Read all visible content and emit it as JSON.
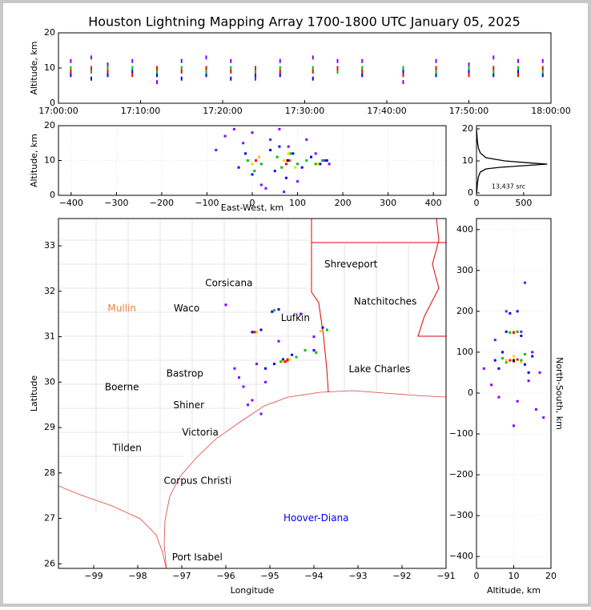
{
  "title": "Houston Lightning Mapping Array 1700-1800 UTC January 05, 2025",
  "chart_data": [
    {
      "type": "scatter",
      "ylabel": "Altitude, km",
      "xlim": [
        "17:00:00",
        "18:00:00"
      ],
      "xticks": [
        "17:00:00",
        "17:10:00",
        "17:20:00",
        "17:30:00",
        "17:40:00",
        "17:50:00",
        "18:00:00"
      ],
      "ylim": [
        0,
        20
      ],
      "yticks": [
        0,
        10,
        20
      ],
      "grid": false,
      "series": [
        {
          "color": "#8000ff",
          "x": [
            "17:01:30",
            "17:04:00",
            "17:06:00",
            "17:09:00",
            "17:12:00",
            "17:15:00",
            "17:18:00",
            "17:21:00",
            "17:24:00",
            "17:27:00",
            "17:31:00",
            "17:34:00",
            "17:37:00",
            "17:42:00",
            "17:46:00",
            "17:50:00",
            "17:53:00",
            "17:56:00",
            "17:59:00"
          ],
          "y": [
            12,
            13,
            11,
            12,
            6,
            12,
            13,
            12,
            7,
            12,
            13,
            12,
            12,
            6,
            12,
            11,
            13,
            12,
            12
          ]
        },
        {
          "color": "#0000ff",
          "x": [
            "17:01:30",
            "17:04:00",
            "17:06:00",
            "17:09:00",
            "17:12:00",
            "17:15:00",
            "17:18:00",
            "17:21:00",
            "17:24:00",
            "17:27:00",
            "17:31:00",
            "17:34:00",
            "17:37:00",
            "17:42:00",
            "17:46:00",
            "17:50:00",
            "17:53:00",
            "17:56:00",
            "17:59:00"
          ],
          "y": [
            8,
            7,
            8,
            9,
            8,
            7,
            8,
            7,
            8,
            8,
            7,
            9,
            8,
            9,
            8,
            9,
            8,
            9,
            8
          ]
        },
        {
          "color": "#00c000",
          "x": [
            "17:01:30",
            "17:04:00",
            "17:06:00",
            "17:09:00",
            "17:12:00",
            "17:15:00",
            "17:18:00",
            "17:21:00",
            "17:24:00",
            "17:27:00",
            "17:31:00",
            "17:34:00",
            "17:37:00",
            "17:42:00",
            "17:46:00",
            "17:50:00",
            "17:53:00",
            "17:56:00",
            "17:59:00"
          ],
          "y": [
            10,
            9,
            10,
            10,
            9,
            10,
            9,
            10,
            9,
            10,
            10,
            9,
            10,
            10,
            9,
            10,
            9,
            10,
            9
          ]
        },
        {
          "color": "#ff0000",
          "x": [
            "17:01:30",
            "17:04:00",
            "17:06:00",
            "17:09:00",
            "17:12:00",
            "17:15:00",
            "17:18:00",
            "17:21:00",
            "17:24:00",
            "17:27:00",
            "17:31:00",
            "17:34:00",
            "17:37:00",
            "17:42:00",
            "17:46:00",
            "17:50:00",
            "17:53:00",
            "17:56:00",
            "17:59:00"
          ],
          "y": [
            9,
            10,
            9,
            8,
            10,
            9,
            10,
            9,
            10,
            9,
            9,
            10,
            9,
            8,
            10,
            8,
            10,
            8,
            10
          ]
        }
      ]
    },
    {
      "type": "scatter",
      "xlabel": "East-West, km",
      "ylabel": "Altitude, km",
      "xlim": [
        -428,
        428
      ],
      "xticks": [
        {
          "value": -400,
          "label": "−400"
        },
        {
          "value": -300,
          "label": "−300"
        },
        {
          "value": -200,
          "label": "−200"
        },
        {
          "value": -100,
          "label": "−100"
        },
        0,
        100,
        200,
        300,
        400
      ],
      "ylim": [
        0,
        20
      ],
      "yticks": [
        0,
        10,
        20
      ],
      "grid": true,
      "series": [
        {
          "color": "#8000ff",
          "x": [
            -60,
            -40,
            -20,
            0,
            20,
            40,
            60,
            80,
            100,
            120,
            140,
            160,
            170,
            -80,
            30,
            70
          ],
          "y": [
            17,
            19,
            15,
            18,
            3,
            16,
            19,
            14,
            4,
            16,
            12,
            10,
            9,
            13,
            2,
            1
          ]
        },
        {
          "color": "#0000ff",
          "x": [
            -30,
            -15,
            0,
            15,
            40,
            50,
            60,
            75,
            90,
            110,
            130,
            150,
            165
          ],
          "y": [
            8,
            12,
            6,
            11,
            13,
            7,
            14,
            5,
            12,
            8,
            11,
            9,
            10
          ]
        },
        {
          "color": "#00c000",
          "x": [
            -10,
            5,
            20,
            55,
            65,
            85,
            100,
            120,
            140,
            155
          ],
          "y": [
            10,
            7,
            9,
            11,
            8,
            12,
            9,
            10,
            9,
            10
          ]
        },
        {
          "color": "#ffd000",
          "x": [
            0,
            15,
            70,
            80,
            95,
            145
          ],
          "y": [
            9,
            11,
            10,
            12,
            8,
            9
          ]
        },
        {
          "color": "#ff0000",
          "x": [
            8,
            75,
            82
          ],
          "y": [
            10,
            9,
            10
          ]
        },
        {
          "color": "#000000",
          "x": [
            78
          ],
          "y": [
            10
          ]
        }
      ]
    },
    {
      "type": "line",
      "annotation": "13,437 src",
      "xlim": [
        0,
        790
      ],
      "xticks": [
        0,
        500
      ],
      "ylim": [
        -0.75,
        21
      ],
      "yticks": [
        0,
        10,
        20
      ],
      "grid": false,
      "color": "#000000",
      "x": [
        0,
        5,
        10,
        20,
        40,
        100,
        300,
        600,
        750,
        500,
        250,
        100,
        40,
        20,
        10,
        5,
        2
      ],
      "y": [
        20,
        18,
        16,
        14,
        12.5,
        11,
        10,
        9.3,
        9,
        8.5,
        8,
        7.5,
        6.5,
        5,
        3,
        1,
        0
      ]
    },
    {
      "type": "map",
      "xlabel": "Longitude",
      "ylabel": "Latitude",
      "xlim": [
        -99.8,
        -91
      ],
      "xticks": [
        {
          "value": -99,
          "label": "−99"
        },
        {
          "value": -98,
          "label": "−98"
        },
        {
          "value": -97,
          "label": "−97"
        },
        {
          "value": -96,
          "label": "−96"
        },
        {
          "value": -95,
          "label": "−95"
        },
        {
          "value": -94,
          "label": "−94"
        },
        {
          "value": -93,
          "label": "−93"
        },
        {
          "value": -92,
          "label": "−92"
        },
        {
          "value": -91,
          "label": "−91"
        }
      ],
      "ylim": [
        25.9,
        33.6
      ],
      "yticks": [
        26,
        27,
        28,
        29,
        30,
        31,
        32,
        33
      ],
      "grid": false,
      "places": [
        {
          "label": "Shreveport",
          "lon": -93.16,
          "lat": 32.59,
          "color": "#000000"
        },
        {
          "label": "Corsicana",
          "lon": -95.93,
          "lat": 32.17,
          "color": "#000000"
        },
        {
          "label": "Natchitoches",
          "lon": -92.38,
          "lat": 31.77,
          "color": "#000000"
        },
        {
          "label": "Mullin",
          "lon": -98.36,
          "lat": 31.62,
          "color": "#f08040"
        },
        {
          "label": "Waco",
          "lon": -96.89,
          "lat": 31.62,
          "color": "#000000"
        },
        {
          "label": "Lufkin",
          "lon": -94.42,
          "lat": 31.41,
          "color": "#000000"
        },
        {
          "label": "Bastrop",
          "lon": -96.93,
          "lat": 30.18,
          "color": "#000000"
        },
        {
          "label": "Lake Charles",
          "lon": -92.51,
          "lat": 30.28,
          "color": "#000000"
        },
        {
          "label": "Boerne",
          "lon": -98.36,
          "lat": 29.88,
          "color": "#000000"
        },
        {
          "label": "Shiner",
          "lon": -96.84,
          "lat": 29.49,
          "color": "#000000"
        },
        {
          "label": "Victoria",
          "lon": -96.58,
          "lat": 28.89,
          "color": "#000000"
        },
        {
          "label": "Tilden",
          "lon": -98.24,
          "lat": 28.54,
          "color": "#000000"
        },
        {
          "label": "Corpus Christi",
          "lon": -96.64,
          "lat": 27.82,
          "color": "#000000"
        },
        {
          "label": "Hoover-Diana",
          "lon": -93.95,
          "lat": 27.0,
          "color": "#0000ff"
        },
        {
          "label": "Port Isabel",
          "lon": -96.65,
          "lat": 26.14,
          "color": "#000000"
        }
      ],
      "series": [
        {
          "color": "#8000ff",
          "x": [
            -95.6,
            -95.4,
            -95.2,
            -95.7,
            -94.8,
            -94.3,
            -95.3,
            -95.5,
            -94.0,
            -95.1,
            -96.0,
            -95.8
          ],
          "y": [
            29.9,
            29.6,
            29.3,
            30.1,
            30.9,
            31.5,
            30.4,
            29.5,
            31.0,
            30.0,
            31.7,
            30.3
          ]
        },
        {
          "color": "#0000ff",
          "x": [
            -94.9,
            -94.7,
            -94.5,
            -94.0,
            -93.8,
            -95.4,
            -95.2,
            -94.95,
            -94.8,
            -95.1
          ],
          "y": [
            30.4,
            30.5,
            30.6,
            30.7,
            31.2,
            31.1,
            31.15,
            31.55,
            31.6,
            30.3
          ]
        },
        {
          "color": "#00c000",
          "x": [
            -94.75,
            -94.6,
            -94.4,
            -93.95,
            -93.7,
            -95.3,
            -94.9,
            -94.2
          ],
          "y": [
            30.45,
            30.5,
            30.55,
            30.65,
            31.15,
            31.1,
            31.58,
            30.7
          ]
        },
        {
          "color": "#ffd000",
          "x": [
            -94.7,
            -94.55,
            -95.3,
            -93.85
          ],
          "y": [
            30.45,
            30.5,
            31.1,
            31.12
          ]
        },
        {
          "color": "#ff0000",
          "x": [
            -94.65,
            -94.6,
            -95.35
          ],
          "y": [
            30.45,
            30.48,
            31.1
          ]
        }
      ]
    },
    {
      "type": "scatter",
      "xlabel": "Altitude, km",
      "ylabel": "North-South, km",
      "xlim": [
        0,
        20
      ],
      "xticks": [
        0,
        10,
        20
      ],
      "ylim": [
        -429,
        427
      ],
      "yticks": [
        {
          "value": -400,
          "label": "−400"
        },
        {
          "value": -300,
          "label": "−300"
        },
        {
          "value": -200,
          "label": "−200"
        },
        {
          "value": -100,
          "label": "−100"
        },
        0,
        100,
        200,
        300,
        400
      ],
      "grid": true,
      "series": [
        {
          "color": "#8000ff",
          "x": [
            2,
            4,
            6,
            14,
            16,
            18,
            8,
            12,
            10,
            15,
            5,
            17,
            11,
            13
          ],
          "y": [
            60,
            20,
            -10,
            30,
            -40,
            -60,
            200,
            150,
            -80,
            100,
            130,
            50,
            -20,
            270
          ]
        },
        {
          "color": "#0000ff",
          "x": [
            5,
            7,
            13,
            15,
            8,
            12,
            6,
            14,
            9,
            11
          ],
          "y": [
            80,
            100,
            70,
            90,
            150,
            140,
            60,
            50,
            195,
            200
          ]
        },
        {
          "color": "#00c000",
          "x": [
            7,
            8,
            12,
            13,
            9,
            11
          ],
          "y": [
            85,
            75,
            80,
            95,
            148,
            150
          ]
        },
        {
          "color": "#ffd000",
          "x": [
            8,
            10,
            12,
            10
          ],
          "y": [
            80,
            90,
            75,
            150
          ]
        },
        {
          "color": "#ff0000",
          "x": [
            9,
            10,
            11,
            10
          ],
          "y": [
            80,
            78,
            82,
            148
          ]
        },
        {
          "color": "#000000",
          "x": [
            10
          ],
          "y": [
            80
          ]
        }
      ]
    }
  ]
}
